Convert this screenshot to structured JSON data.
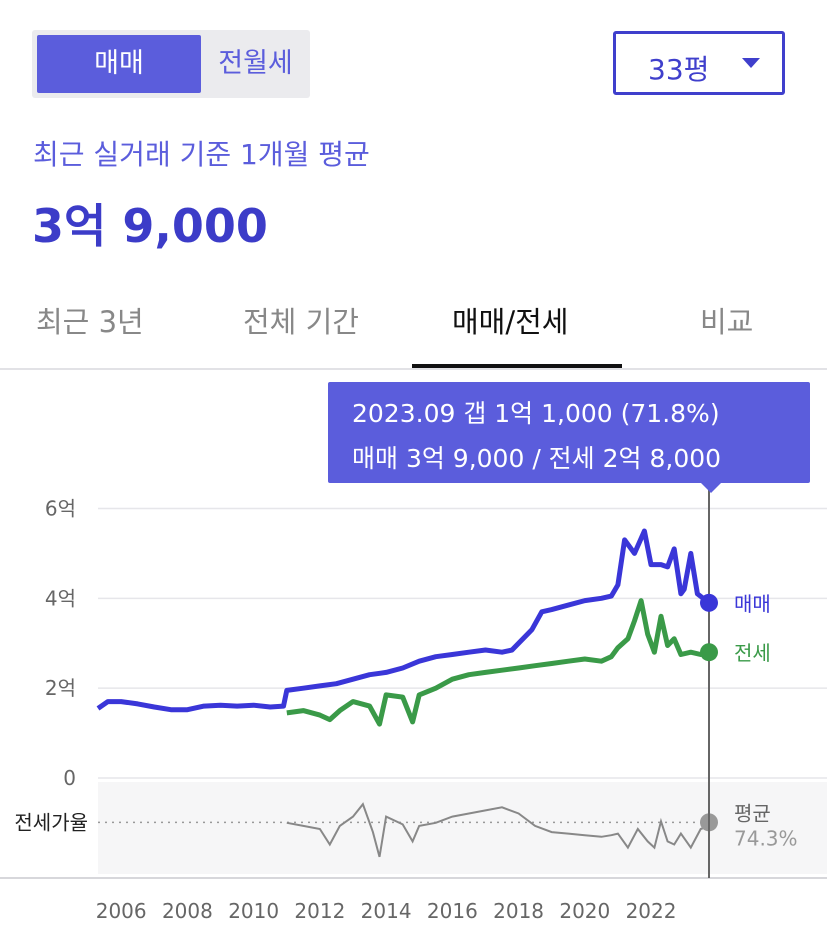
{
  "toggle": {
    "sale_label": "매매",
    "lease_label": "전월세"
  },
  "area_select": {
    "value": "33평"
  },
  "summary": {
    "subtitle": "최근 실거래 기준 1개월 평균",
    "price": "3억 9,000"
  },
  "tabs": [
    {
      "label": "최근 3년"
    },
    {
      "label": "전체 기간"
    },
    {
      "label": "매매/전세",
      "active": true
    },
    {
      "label": "비교"
    }
  ],
  "tooltip": {
    "line1": "2023.09  갭 1억 1,000 (71.8%)",
    "line2": "매매 3억 9,000 / 전세 2억 8,000"
  },
  "colors": {
    "accent": "#5b5ddc",
    "sale": "#3a36d8",
    "jeonse": "#3a9a48",
    "ratio": "#888888"
  },
  "chart_data": {
    "type": "line",
    "y_axis": {
      "ticks": [
        0,
        2,
        4,
        6
      ],
      "tick_labels": [
        "0",
        "2억",
        "4억",
        "6억"
      ],
      "unit": "억",
      "range": [
        0,
        6.1
      ]
    },
    "x_axis": {
      "ticks": [
        2006,
        2008,
        2010,
        2012,
        2014,
        2016,
        2018,
        2020,
        2022
      ],
      "range": [
        2005.3,
        2023.75
      ]
    },
    "grid": true,
    "series": [
      {
        "name": "매매",
        "end_label": "매매",
        "points": [
          [
            2005.3,
            1.55
          ],
          [
            2005.6,
            1.7
          ],
          [
            2006,
            1.7
          ],
          [
            2006.5,
            1.65
          ],
          [
            2007,
            1.58
          ],
          [
            2007.5,
            1.52
          ],
          [
            2008,
            1.52
          ],
          [
            2008.5,
            1.6
          ],
          [
            2009,
            1.62
          ],
          [
            2009.5,
            1.6
          ],
          [
            2010,
            1.62
          ],
          [
            2010.5,
            1.58
          ],
          [
            2010.9,
            1.6
          ],
          [
            2011,
            1.95
          ],
          [
            2011.5,
            2.0
          ],
          [
            2012,
            2.05
          ],
          [
            2012.5,
            2.1
          ],
          [
            2013,
            2.2
          ],
          [
            2013.5,
            2.3
          ],
          [
            2014,
            2.35
          ],
          [
            2014.5,
            2.45
          ],
          [
            2015,
            2.6
          ],
          [
            2015.5,
            2.7
          ],
          [
            2016,
            2.75
          ],
          [
            2016.5,
            2.8
          ],
          [
            2017,
            2.85
          ],
          [
            2017.5,
            2.8
          ],
          [
            2017.8,
            2.85
          ],
          [
            2018,
            3.0
          ],
          [
            2018.4,
            3.3
          ],
          [
            2018.7,
            3.7
          ],
          [
            2019,
            3.75
          ],
          [
            2019.5,
            3.85
          ],
          [
            2020,
            3.95
          ],
          [
            2020.5,
            4.0
          ],
          [
            2020.8,
            4.05
          ],
          [
            2021,
            4.3
          ],
          [
            2021.2,
            5.3
          ],
          [
            2021.5,
            5.0
          ],
          [
            2021.8,
            5.5
          ],
          [
            2022,
            4.75
          ],
          [
            2022.3,
            4.75
          ],
          [
            2022.5,
            4.7
          ],
          [
            2022.7,
            5.1
          ],
          [
            2022.9,
            4.1
          ],
          [
            2023.0,
            4.2
          ],
          [
            2023.2,
            5.0
          ],
          [
            2023.4,
            4.1
          ],
          [
            2023.75,
            3.9
          ]
        ]
      },
      {
        "name": "전세",
        "end_label": "전세",
        "points": [
          [
            2011,
            1.45
          ],
          [
            2011.5,
            1.5
          ],
          [
            2012,
            1.4
          ],
          [
            2012.3,
            1.3
          ],
          [
            2012.6,
            1.5
          ],
          [
            2013,
            1.7
          ],
          [
            2013.5,
            1.6
          ],
          [
            2013.8,
            1.2
          ],
          [
            2014,
            1.85
          ],
          [
            2014.5,
            1.8
          ],
          [
            2014.8,
            1.25
          ],
          [
            2015,
            1.85
          ],
          [
            2015.5,
            2.0
          ],
          [
            2016,
            2.2
          ],
          [
            2016.5,
            2.3
          ],
          [
            2017,
            2.35
          ],
          [
            2017.5,
            2.4
          ],
          [
            2018,
            2.45
          ],
          [
            2018.5,
            2.5
          ],
          [
            2019,
            2.55
          ],
          [
            2019.5,
            2.6
          ],
          [
            2020,
            2.65
          ],
          [
            2020.5,
            2.6
          ],
          [
            2020.8,
            2.7
          ],
          [
            2021,
            2.9
          ],
          [
            2021.3,
            3.1
          ],
          [
            2021.5,
            3.5
          ],
          [
            2021.7,
            3.95
          ],
          [
            2021.9,
            3.2
          ],
          [
            2022.1,
            2.8
          ],
          [
            2022.3,
            3.6
          ],
          [
            2022.5,
            2.95
          ],
          [
            2022.7,
            3.1
          ],
          [
            2022.9,
            2.75
          ],
          [
            2023.2,
            2.8
          ],
          [
            2023.5,
            2.75
          ],
          [
            2023.75,
            2.8
          ]
        ]
      }
    ],
    "ratio": {
      "label": "전세가율",
      "avg_label": "평균",
      "avg_value": "74.3%",
      "points": [
        [
          2011,
          0.74
        ],
        [
          2011.5,
          0.72
        ],
        [
          2012,
          0.7
        ],
        [
          2012.3,
          0.6
        ],
        [
          2012.6,
          0.72
        ],
        [
          2013,
          0.78
        ],
        [
          2013.3,
          0.86
        ],
        [
          2013.6,
          0.68
        ],
        [
          2013.8,
          0.52
        ],
        [
          2014,
          0.78
        ],
        [
          2014.5,
          0.73
        ],
        [
          2014.8,
          0.62
        ],
        [
          2015,
          0.72
        ],
        [
          2015.5,
          0.74
        ],
        [
          2016,
          0.78
        ],
        [
          2016.5,
          0.8
        ],
        [
          2017,
          0.82
        ],
        [
          2017.5,
          0.84
        ],
        [
          2018,
          0.8
        ],
        [
          2018.5,
          0.72
        ],
        [
          2019,
          0.68
        ],
        [
          2019.5,
          0.67
        ],
        [
          2020,
          0.66
        ],
        [
          2020.5,
          0.65
        ],
        [
          2020.8,
          0.66
        ],
        [
          2021,
          0.67
        ],
        [
          2021.3,
          0.58
        ],
        [
          2021.6,
          0.7
        ],
        [
          2021.9,
          0.62
        ],
        [
          2022.1,
          0.58
        ],
        [
          2022.3,
          0.75
        ],
        [
          2022.5,
          0.62
        ],
        [
          2022.7,
          0.6
        ],
        [
          2022.9,
          0.67
        ],
        [
          2023.2,
          0.58
        ],
        [
          2023.5,
          0.7
        ],
        [
          2023.75,
          0.718
        ]
      ]
    }
  }
}
